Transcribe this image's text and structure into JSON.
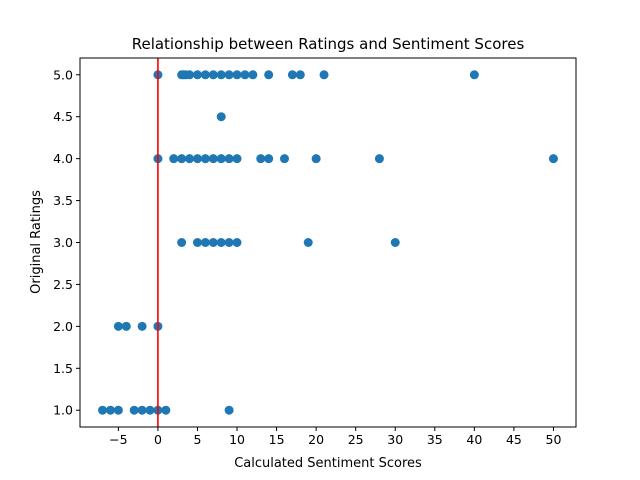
{
  "chart_data": {
    "type": "scatter",
    "title": "Relationship between Ratings and Sentiment Scores",
    "xlabel": "Calculated Sentiment Scores",
    "ylabel": "Original Ratings",
    "xlim": [
      -9.85,
      52.85
    ],
    "ylim": [
      0.8,
      5.2
    ],
    "xticks": [
      -5,
      0,
      5,
      10,
      15,
      20,
      25,
      30,
      35,
      40,
      45,
      50
    ],
    "yticks": [
      1.0,
      1.5,
      2.0,
      2.5,
      3.0,
      3.5,
      4.0,
      4.5,
      5.0
    ],
    "grid": false,
    "marker_color": "#1f77b4",
    "reference_line": {
      "x": 0,
      "color": "#ff0000"
    },
    "points": [
      {
        "x": 0,
        "y": 5
      },
      {
        "x": 3,
        "y": 5
      },
      {
        "x": 3.2,
        "y": 5
      },
      {
        "x": 3.5,
        "y": 5
      },
      {
        "x": 4,
        "y": 5
      },
      {
        "x": 5,
        "y": 5
      },
      {
        "x": 6,
        "y": 5
      },
      {
        "x": 7,
        "y": 5
      },
      {
        "x": 8,
        "y": 5
      },
      {
        "x": 9,
        "y": 5
      },
      {
        "x": 10,
        "y": 5
      },
      {
        "x": 11,
        "y": 5
      },
      {
        "x": 12,
        "y": 5
      },
      {
        "x": 14,
        "y": 5
      },
      {
        "x": 17,
        "y": 5
      },
      {
        "x": 18,
        "y": 5
      },
      {
        "x": 21,
        "y": 5
      },
      {
        "x": 40,
        "y": 5
      },
      {
        "x": 8,
        "y": 4.5
      },
      {
        "x": 0,
        "y": 4
      },
      {
        "x": 2,
        "y": 4
      },
      {
        "x": 3,
        "y": 4
      },
      {
        "x": 4,
        "y": 4
      },
      {
        "x": 5,
        "y": 4
      },
      {
        "x": 6,
        "y": 4
      },
      {
        "x": 7,
        "y": 4
      },
      {
        "x": 8,
        "y": 4
      },
      {
        "x": 9,
        "y": 4
      },
      {
        "x": 10,
        "y": 4
      },
      {
        "x": 13,
        "y": 4
      },
      {
        "x": 14,
        "y": 4
      },
      {
        "x": 16,
        "y": 4
      },
      {
        "x": 20,
        "y": 4
      },
      {
        "x": 28,
        "y": 4
      },
      {
        "x": 50,
        "y": 4
      },
      {
        "x": 3,
        "y": 3
      },
      {
        "x": 5,
        "y": 3
      },
      {
        "x": 6,
        "y": 3
      },
      {
        "x": 7,
        "y": 3
      },
      {
        "x": 8,
        "y": 3
      },
      {
        "x": 9,
        "y": 3
      },
      {
        "x": 10,
        "y": 3
      },
      {
        "x": 19,
        "y": 3
      },
      {
        "x": 30,
        "y": 3
      },
      {
        "x": -5,
        "y": 2
      },
      {
        "x": -4,
        "y": 2
      },
      {
        "x": -2,
        "y": 2
      },
      {
        "x": 0,
        "y": 2
      },
      {
        "x": -7,
        "y": 1
      },
      {
        "x": -6,
        "y": 1
      },
      {
        "x": -5,
        "y": 1
      },
      {
        "x": -3,
        "y": 1
      },
      {
        "x": -2,
        "y": 1
      },
      {
        "x": -1,
        "y": 1
      },
      {
        "x": 0,
        "y": 1
      },
      {
        "x": 1,
        "y": 1
      },
      {
        "x": 9,
        "y": 1
      }
    ]
  }
}
